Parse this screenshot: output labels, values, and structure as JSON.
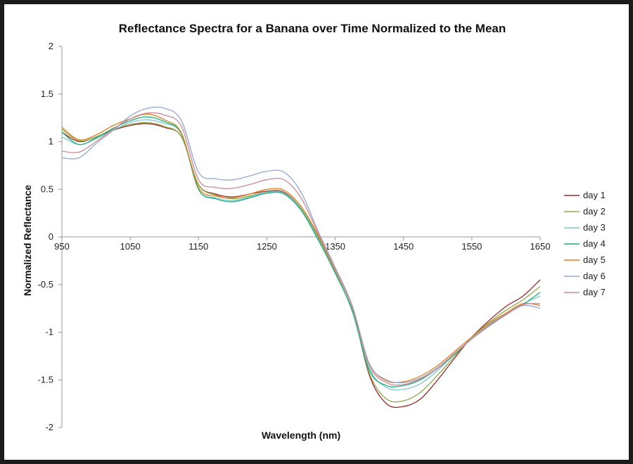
{
  "chart_data": {
    "type": "line",
    "title": "Reflectance Spectra for a Banana over Time Normalized to the Mean",
    "xlabel": "Wavelength (nm)",
    "ylabel": "Normalized Reflectance",
    "xlim": [
      950,
      1650
    ],
    "ylim": [
      -2,
      2
    ],
    "x_ticks": [
      950,
      1050,
      1150,
      1250,
      1350,
      1450,
      1550,
      1650
    ],
    "y_ticks": [
      2,
      1.5,
      1,
      0.5,
      0,
      -0.5,
      -1,
      -1.5,
      -2
    ],
    "y_tick_labels": [
      "2",
      "1.5",
      "1",
      "0.5",
      "0",
      "-0.5",
      "-1",
      "-1.5",
      "-2"
    ],
    "legend_position": "right",
    "grid": false,
    "x": [
      950,
      975,
      1000,
      1025,
      1050,
      1075,
      1100,
      1125,
      1150,
      1175,
      1200,
      1225,
      1250,
      1275,
      1300,
      1325,
      1350,
      1375,
      1400,
      1425,
      1450,
      1475,
      1500,
      1525,
      1550,
      1575,
      1600,
      1625,
      1650
    ],
    "series": [
      {
        "name": "day 1",
        "color": "#9c2b2b",
        "values": [
          1.1,
          1.0,
          1.05,
          1.12,
          1.17,
          1.19,
          1.15,
          1.05,
          0.55,
          0.45,
          0.42,
          0.45,
          0.48,
          0.47,
          0.3,
          0.0,
          -0.35,
          -0.75,
          -1.45,
          -1.75,
          -1.78,
          -1.7,
          -1.5,
          -1.27,
          -1.05,
          -0.88,
          -0.73,
          -0.62,
          -0.45
        ]
      },
      {
        "name": "day 2",
        "color": "#8fa84a",
        "values": [
          1.13,
          1.01,
          1.05,
          1.13,
          1.18,
          1.2,
          1.16,
          1.05,
          0.55,
          0.44,
          0.4,
          0.43,
          0.47,
          0.46,
          0.3,
          0.0,
          -0.36,
          -0.75,
          -1.43,
          -1.7,
          -1.72,
          -1.63,
          -1.45,
          -1.25,
          -1.05,
          -0.9,
          -0.77,
          -0.66,
          -0.52
        ]
      },
      {
        "name": "day 3",
        "color": "#7fc8cc",
        "values": [
          1.05,
          0.97,
          1.03,
          1.12,
          1.2,
          1.23,
          1.19,
          1.08,
          0.5,
          0.41,
          0.38,
          0.42,
          0.47,
          0.46,
          0.29,
          -0.02,
          -0.38,
          -0.78,
          -1.38,
          -1.58,
          -1.6,
          -1.54,
          -1.4,
          -1.23,
          -1.06,
          -0.92,
          -0.8,
          -0.7,
          -0.62
        ]
      },
      {
        "name": "day 4",
        "color": "#1fae7c",
        "values": [
          1.1,
          0.97,
          1.04,
          1.14,
          1.22,
          1.26,
          1.21,
          1.08,
          0.5,
          0.4,
          0.37,
          0.41,
          0.46,
          0.45,
          0.28,
          -0.03,
          -0.38,
          -0.78,
          -1.4,
          -1.56,
          -1.56,
          -1.5,
          -1.38,
          -1.23,
          -1.07,
          -0.93,
          -0.81,
          -0.71,
          -0.58
        ]
      },
      {
        "name": "day 5",
        "color": "#e07f24",
        "values": [
          1.15,
          1.02,
          1.07,
          1.17,
          1.24,
          1.29,
          1.23,
          1.09,
          0.52,
          0.43,
          0.41,
          0.45,
          0.5,
          0.49,
          0.32,
          0.02,
          -0.35,
          -0.73,
          -1.33,
          -1.51,
          -1.52,
          -1.46,
          -1.35,
          -1.2,
          -1.05,
          -0.91,
          -0.8,
          -0.7,
          -0.72
        ]
      },
      {
        "name": "day 6",
        "color": "#95a7cf",
        "values": [
          0.83,
          0.83,
          0.98,
          1.12,
          1.27,
          1.35,
          1.35,
          1.22,
          0.68,
          0.61,
          0.6,
          0.64,
          0.69,
          0.68,
          0.47,
          0.06,
          -0.32,
          -0.72,
          -1.33,
          -1.5,
          -1.53,
          -1.48,
          -1.37,
          -1.22,
          -1.07,
          -0.94,
          -0.82,
          -0.72,
          -0.75
        ]
      },
      {
        "name": "day 7",
        "color": "#cc8a96",
        "values": [
          0.9,
          0.89,
          1.0,
          1.13,
          1.24,
          1.3,
          1.28,
          1.16,
          0.6,
          0.52,
          0.51,
          0.55,
          0.6,
          0.6,
          0.41,
          0.04,
          -0.34,
          -0.74,
          -1.35,
          -1.53,
          -1.55,
          -1.49,
          -1.38,
          -1.22,
          -1.07,
          -0.93,
          -0.81,
          -0.71,
          -0.7
        ]
      }
    ]
  }
}
